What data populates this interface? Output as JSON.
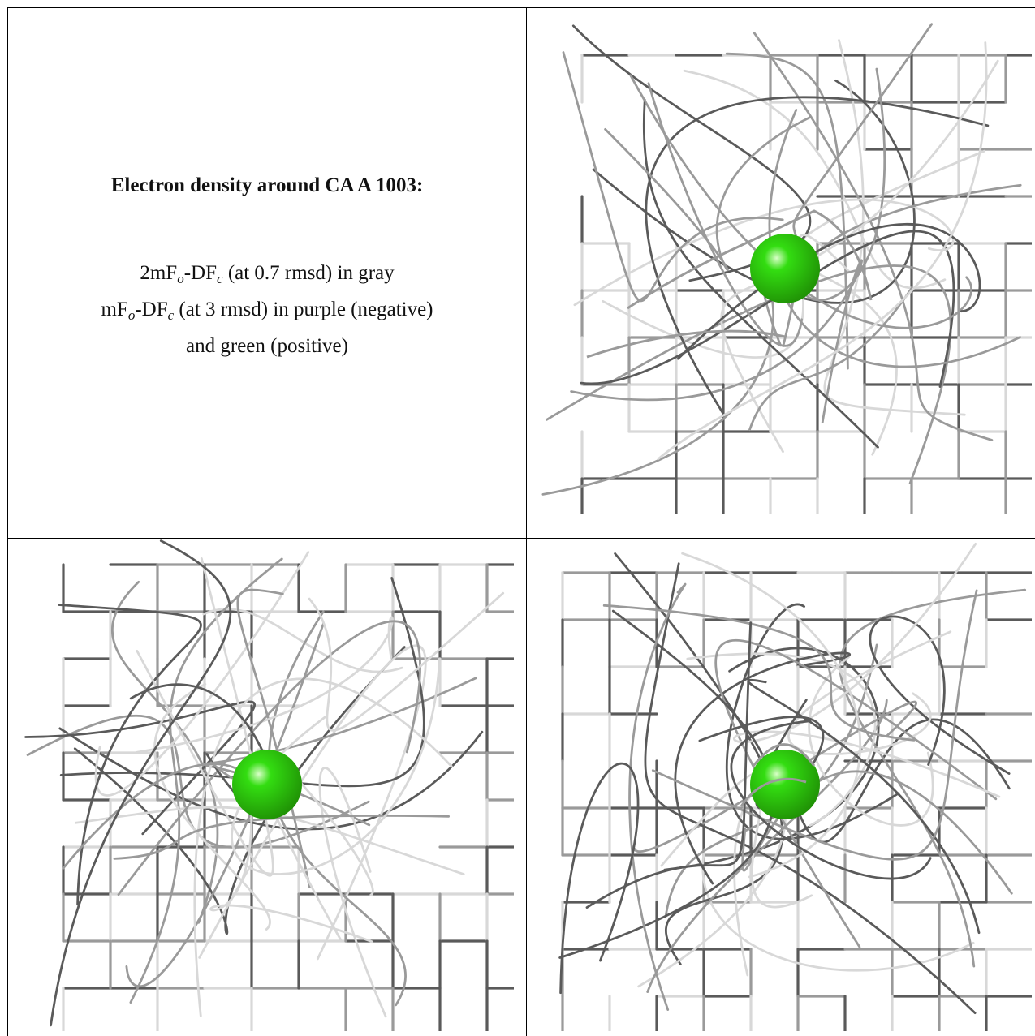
{
  "caption": {
    "title": "Electron density around CA A 1003:",
    "lines": [
      {
        "pre": "2mF",
        "s1": "o",
        "mid": "-DF",
        "s2": "c",
        "post": " (at 0.7 rmsd) in gray"
      },
      {
        "pre": "mF",
        "s1": "o",
        "mid": "-DF",
        "s2": "c",
        "post": " (at 3 rmsd) in purple (negative)"
      },
      {
        "pre": "",
        "s1": "",
        "mid": "",
        "s2": "",
        "post": "and green (positive)"
      }
    ]
  },
  "panels": [
    {
      "name": "top-right",
      "atom_color": "#33dd11"
    },
    {
      "name": "bottom-left",
      "atom_color": "#33dd11"
    },
    {
      "name": "bottom-right",
      "atom_color": "#33dd11"
    }
  ],
  "colors": {
    "mesh_dark": "#5a5a5a",
    "mesh_mid": "#9a9a9a",
    "mesh_light": "#d8d8d8",
    "atom": "#33dd11",
    "border": "#000000"
  }
}
